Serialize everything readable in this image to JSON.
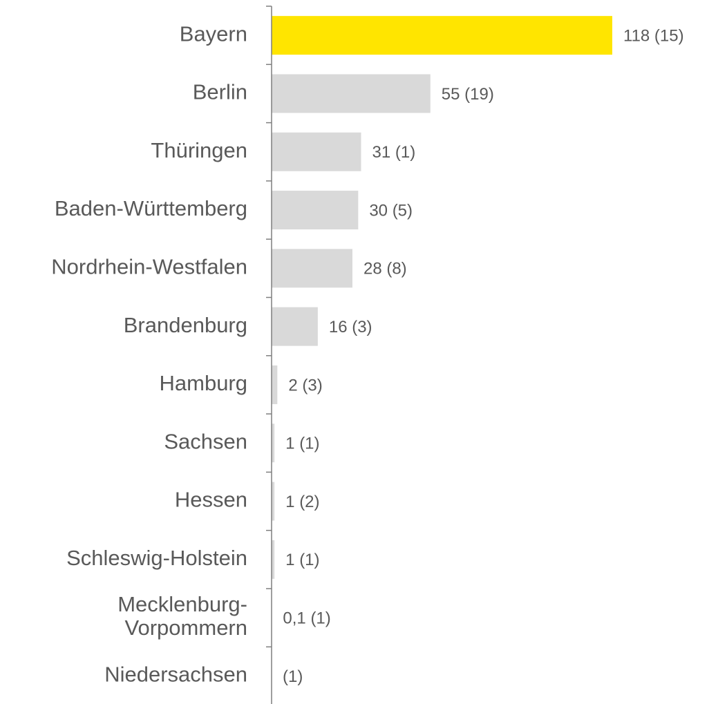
{
  "chart_data": {
    "type": "barh",
    "categories": [
      "Bayern",
      "Berlin",
      "Thüringen",
      "Baden-Württemberg",
      "Nordrhein-Westfalen",
      "Brandenburg",
      "Hamburg",
      "Sachsen",
      "Hessen",
      "Schleswig-Holstein",
      "Mecklenburg-Vorpommern",
      "Niedersachsen"
    ],
    "values": [
      118,
      55,
      31,
      30,
      28,
      16,
      2,
      1,
      1,
      1,
      0.1,
      null
    ],
    "value_labels": [
      "118 (15)",
      "55 (19)",
      "31 (1)",
      "30 (5)",
      "28 (8)",
      "16 (3)",
      "2 (3)",
      "1 (1)",
      "1 (2)",
      "1 (1)",
      "0,1 (1)",
      "(1)"
    ],
    "colors": [
      "#ffe500",
      "#d9d9d9",
      "#d9d9d9",
      "#d9d9d9",
      "#d9d9d9",
      "#d9d9d9",
      "#d9d9d9",
      "#d9d9d9",
      "#d9d9d9",
      "#d9d9d9",
      "#d9d9d9",
      "#d9d9d9"
    ],
    "xlim": [
      0,
      118
    ]
  }
}
